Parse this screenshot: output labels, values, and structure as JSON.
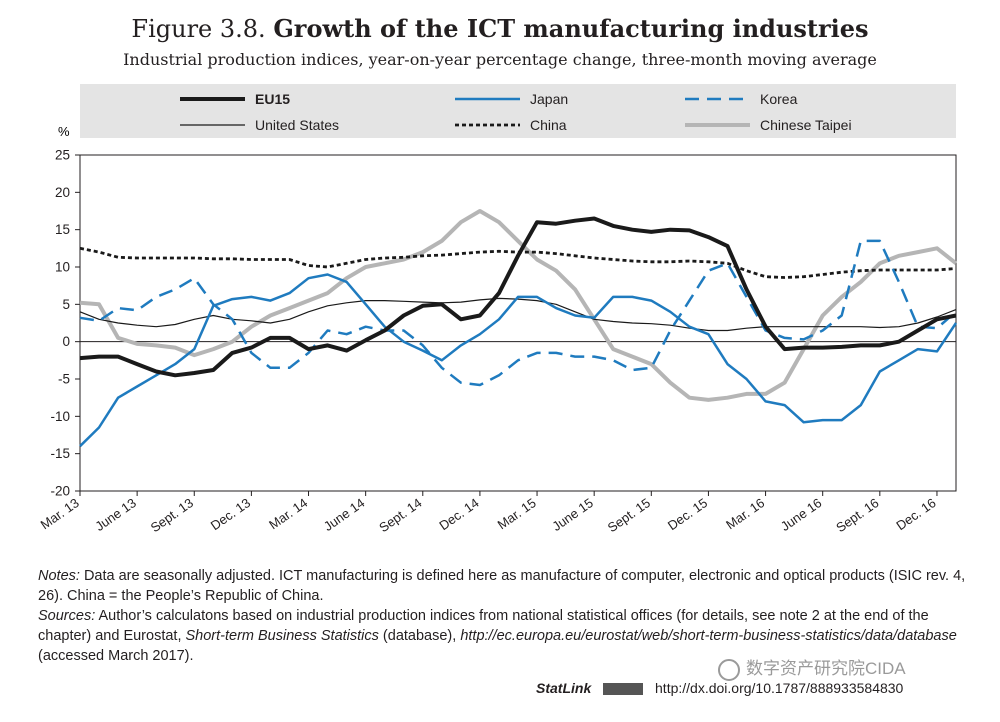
{
  "figure": {
    "number": "Figure 3.8.",
    "title": "Growth of the ICT manufacturing industries",
    "subtitle": "Industrial production indices, year-on-year percentage change, three-month moving average"
  },
  "notes": {
    "notes_label": "Notes:",
    "notes_text": " Data are seasonally adjusted. ICT manufacturing is defined here as manufacture of computer, electronic and optical products (ISIC rev. 4, 26). China = the People’s Republic of China.",
    "sources_label": "Sources:",
    "sources_text_1": " Author’s calculatons based on industrial production indices from national statistical offices (for details, see note 2 at the end of the chapter) and Eurostat, ",
    "sources_db": "Short-term Business Statistics",
    "sources_text_2": " (database), ",
    "sources_url": "http://ec.europa.eu/eurostat/web/short-term-business-statistics/data/database",
    "sources_text_3": " (accessed March 2017)."
  },
  "statlink": {
    "label": "StatLink",
    "doi": "http://dx.doi.org/10.1787/888933584830"
  },
  "watermark": {
    "text": "数字资产研究院CIDA"
  },
  "chart_data": {
    "type": "line",
    "ylabel": "%",
    "ylim": [
      -20,
      25
    ],
    "yticks": [
      25,
      20,
      15,
      10,
      5,
      0,
      -5,
      -10,
      -15,
      -20
    ],
    "grid": false,
    "legend_position": "top",
    "x_tick_labels": [
      "Mar. 13",
      "June 13",
      "Sept. 13",
      "Dec. 13",
      "Mar. 14",
      "June 14",
      "Sept. 14",
      "Dec. 14",
      "Mar. 15",
      "June 15",
      "Sept. 15",
      "Dec. 15",
      "Mar. 16",
      "June 16",
      "Sept. 16",
      "Dec. 16"
    ],
    "x_start": "Mar. 13",
    "x_end": "Dec. 16",
    "series": [
      {
        "name": "EU15",
        "color": "#1a1a1a",
        "style": "solid-thick",
        "values": [
          -2.2,
          -2.0,
          -2.0,
          -3.0,
          -4.0,
          -4.5,
          -4.2,
          -3.8,
          -1.5,
          -0.8,
          0.5,
          0.5,
          -1.0,
          -0.5,
          -1.2,
          0.2,
          1.5,
          3.5,
          4.8,
          5.0,
          3.0,
          3.5,
          6.5,
          11.5,
          16.0,
          15.8,
          16.2,
          16.5,
          15.5,
          15.0,
          14.7,
          15.0,
          14.9,
          14.0,
          12.8,
          7.0,
          2.0,
          -1.0,
          -0.8,
          -0.8,
          -0.7,
          -0.5,
          -0.5,
          0.0,
          1.5,
          3.0,
          3.5
        ]
      },
      {
        "name": "United States",
        "color": "#1a1a1a",
        "style": "solid-thin",
        "values": [
          4.0,
          3.0,
          2.5,
          2.2,
          2.0,
          2.3,
          3.0,
          3.5,
          3.0,
          2.8,
          2.5,
          3.0,
          4.0,
          4.8,
          5.2,
          5.5,
          5.5,
          5.4,
          5.3,
          5.2,
          5.3,
          5.6,
          5.8,
          5.7,
          5.5,
          5.0,
          4.0,
          3.0,
          2.7,
          2.5,
          2.4,
          2.2,
          1.8,
          1.5,
          1.5,
          1.8,
          2.0,
          2.0,
          2.0,
          2.0,
          2.0,
          2.0,
          1.9,
          2.0,
          2.5,
          3.3,
          4.3
        ]
      },
      {
        "name": "Japan",
        "color": "#1f7bbf",
        "style": "solid",
        "values": [
          -14.0,
          -11.5,
          -7.5,
          -6.0,
          -4.5,
          -3.0,
          -1.0,
          4.8,
          5.7,
          6.0,
          5.5,
          6.5,
          8.5,
          9.0,
          8.0,
          5.0,
          2.0,
          0.0,
          -1.2,
          -2.5,
          -0.5,
          1.0,
          3.0,
          6.0,
          6.0,
          4.5,
          3.5,
          3.2,
          6.0,
          6.0,
          5.5,
          4.0,
          2.0,
          1.0,
          -3.0,
          -5.0,
          -8.0,
          -8.5,
          -10.8,
          -10.5,
          -10.5,
          -8.5,
          -4.0,
          -2.5,
          -1.0,
          -1.3,
          2.5
        ]
      },
      {
        "name": "China",
        "color": "#1a1a1a",
        "style": "dotted",
        "values": [
          12.5,
          12.0,
          11.3,
          11.2,
          11.2,
          11.2,
          11.2,
          11.1,
          11.1,
          11.0,
          11.0,
          11.0,
          10.2,
          10.0,
          10.5,
          11.0,
          11.2,
          11.3,
          11.5,
          11.6,
          11.8,
          12.0,
          12.1,
          12.0,
          12.0,
          11.8,
          11.5,
          11.2,
          11.0,
          10.8,
          10.7,
          10.7,
          10.8,
          10.7,
          10.5,
          9.5,
          8.7,
          8.6,
          8.7,
          9.0,
          9.3,
          9.5,
          9.6,
          9.6,
          9.6,
          9.6,
          9.8
        ]
      },
      {
        "name": "Korea",
        "color": "#1f7bbf",
        "style": "dashed",
        "values": [
          3.2,
          2.8,
          4.5,
          4.2,
          6.0,
          7.0,
          8.5,
          5.0,
          3.0,
          -1.5,
          -3.5,
          -3.5,
          -1.5,
          1.5,
          1.0,
          2.0,
          1.5,
          1.5,
          -0.5,
          -3.5,
          -5.5,
          -5.8,
          -4.5,
          -2.5,
          -1.5,
          -1.5,
          -2.0,
          -2.0,
          -2.5,
          -3.8,
          -3.5,
          1.5,
          5.5,
          9.5,
          10.5,
          6.0,
          1.5,
          0.5,
          0.3,
          1.5,
          3.5,
          13.5,
          13.5,
          8.0,
          2.0,
          1.8,
          4.0
        ]
      },
      {
        "name": "Chinese Taipei",
        "color": "#b5b5b5",
        "style": "solid-thick",
        "values": [
          5.2,
          5.0,
          0.5,
          -0.3,
          -0.5,
          -0.8,
          -1.8,
          -1.0,
          0.0,
          2.0,
          3.5,
          4.5,
          5.5,
          6.5,
          8.5,
          10.0,
          10.5,
          11.0,
          12.0,
          13.5,
          16.0,
          17.5,
          16.0,
          13.5,
          11.0,
          9.5,
          7.0,
          3.0,
          -1.0,
          -2.0,
          -3.0,
          -5.5,
          -7.5,
          -7.8,
          -7.5,
          -7.0,
          -7.0,
          -5.5,
          -1.0,
          3.5,
          6.0,
          8.0,
          10.5,
          11.5,
          12.0,
          12.5,
          10.5
        ]
      }
    ]
  }
}
